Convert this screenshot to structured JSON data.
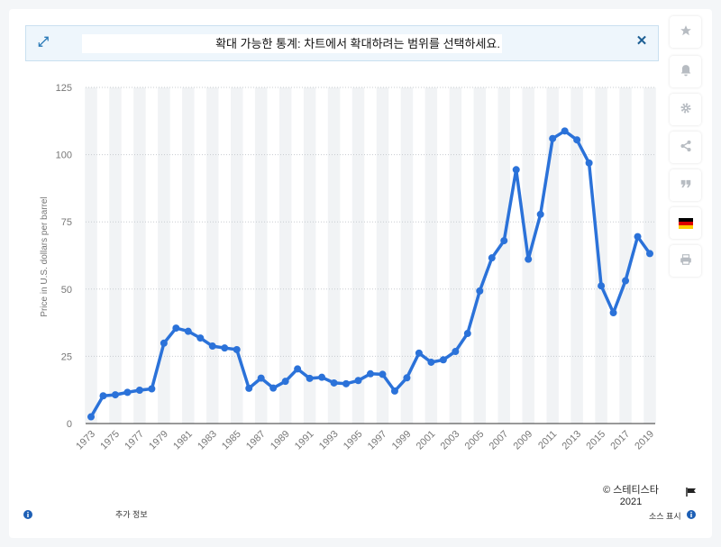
{
  "banner": {
    "message": "확대 가능한 통계: 차트에서 확대하려는 범위를 선택하세요.",
    "expand_icon": "expand-icon",
    "close_icon": "close-icon"
  },
  "sidebar": {
    "items": [
      {
        "icon": "star-icon"
      },
      {
        "icon": "bell-icon"
      },
      {
        "icon": "gear-icon"
      },
      {
        "icon": "share-icon"
      },
      {
        "icon": "quote-icon"
      },
      {
        "icon": "german-flag-icon"
      },
      {
        "icon": "print-icon"
      }
    ]
  },
  "footer": {
    "copyright": "© 스테티스타",
    "year": "2021",
    "more_info": "추가 정보",
    "show_source": "소스 표시"
  },
  "colors": {
    "line": "#2b72d9",
    "band": "#f1f3f5",
    "grid": "#c8ccd0",
    "axis_text": "#777777"
  },
  "chart_data": {
    "type": "line",
    "title": "",
    "xlabel": "",
    "ylabel": "Price in U.S. dollars per barrel",
    "ylim": [
      0,
      125
    ],
    "yticks": [
      0,
      25,
      50,
      75,
      100,
      125
    ],
    "xticks": [
      "1973",
      "1975",
      "1977",
      "1979",
      "1981",
      "1983",
      "1985",
      "1987",
      "1989",
      "1991",
      "1993",
      "1995",
      "1997",
      "1999",
      "2001",
      "2003",
      "2005",
      "2007",
      "2009",
      "2011",
      "2013",
      "2015",
      "2017",
      "2019"
    ],
    "grid": true,
    "legend": "none",
    "series": [
      {
        "x": [
          1973,
          1974,
          1975,
          1976,
          1977,
          1978,
          1979,
          1980,
          1981,
          1982,
          1983,
          1984,
          1985,
          1986,
          1987,
          1988,
          1989,
          1990,
          1991,
          1992,
          1993,
          1994,
          1995,
          1996,
          1997,
          1998,
          1999,
          2000,
          2001,
          2002,
          2003,
          2004,
          2005,
          2006,
          2007,
          2008,
          2009,
          2010,
          2011,
          2012,
          2013,
          2014,
          2015,
          2016,
          2017,
          2018,
          2019
        ],
        "values": [
          2.5,
          10.3,
          10.7,
          11.6,
          12.4,
          12.9,
          29.9,
          35.5,
          34.3,
          31.8,
          28.8,
          28.1,
          27.5,
          13.1,
          16.9,
          13.2,
          15.7,
          20.3,
          16.8,
          17.2,
          15.1,
          14.8,
          16.0,
          18.5,
          18.3,
          12.1,
          17.0,
          26.2,
          22.8,
          23.7,
          26.8,
          33.5,
          49.3,
          61.6,
          68.0,
          94.4,
          61.1,
          77.8,
          106.0,
          108.8,
          105.5,
          96.9,
          51.2,
          41.2,
          53.1,
          69.5,
          63.2
        ]
      }
    ]
  }
}
